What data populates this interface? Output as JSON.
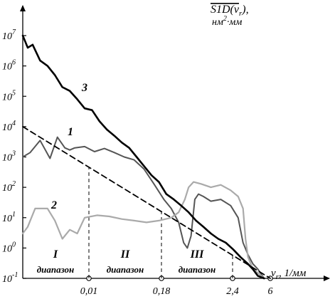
{
  "chart_data": {
    "type": "line",
    "y_axis": {
      "title": "S1D(ν",
      "title_sub": "r",
      "title_close": "),",
      "units_base": "нм",
      "units_sup": "2",
      "units_rest": "·мм",
      "scale": "log",
      "ylim": [
        0.1,
        10000000
      ],
      "tick_values": [
        0.1,
        1,
        10,
        100,
        1000,
        10000,
        100000,
        1000000,
        10000000
      ],
      "tick_bases": [
        "10",
        "10",
        "10",
        "10",
        "10",
        "10",
        "10",
        "10",
        "10"
      ],
      "tick_exps": [
        "-1",
        "0",
        "1",
        "2",
        "3",
        "4",
        "5",
        "6",
        "7"
      ]
    },
    "x_axis": {
      "label_nu": "ν",
      "label_sub": "r",
      "label_units": ", 1/мм",
      "tick_values": [
        0.01,
        0.18,
        2.4,
        6
      ],
      "tick_labels": [
        "0,01",
        "0,18",
        "2,4",
        "6"
      ]
    },
    "ranges": [
      {
        "roman": "I",
        "label": "диапазон"
      },
      {
        "roman": "II",
        "label": "диапазон"
      },
      {
        "roman": "III",
        "label": "диапазон"
      }
    ],
    "series": [
      {
        "name": "1",
        "color": "#555555",
        "x": [
          0,
          0.03,
          0.07,
          0.11,
          0.14,
          0.17,
          0.19,
          0.21,
          0.25,
          0.29,
          0.33,
          0.37,
          0.41,
          0.45,
          0.49,
          0.53,
          0.57,
          0.6,
          0.63,
          0.65,
          0.665,
          0.68,
          0.695,
          0.71,
          0.73,
          0.76,
          0.8,
          0.84,
          0.87,
          0.89,
          0.91,
          0.93,
          0.95,
          0.975
        ],
        "y": [
          1000,
          1400,
          3500,
          900,
          4500,
          2000,
          1700,
          2000,
          2200,
          1500,
          1900,
          1400,
          1000,
          800,
          400,
          130,
          40,
          20,
          7,
          1.5,
          1,
          2.5,
          40,
          60,
          50,
          35,
          40,
          25,
          10,
          1.5,
          0.6,
          0.3,
          0.2,
          0.1
        ]
      },
      {
        "name": "2",
        "color": "#aaaaaa",
        "x": [
          0,
          0.02,
          0.05,
          0.1,
          0.13,
          0.16,
          0.19,
          0.22,
          0.25,
          0.3,
          0.35,
          0.4,
          0.45,
          0.5,
          0.55,
          0.6,
          0.63,
          0.655,
          0.67,
          0.69,
          0.72,
          0.76,
          0.8,
          0.84,
          0.87,
          0.89,
          0.9,
          0.91,
          0.93,
          0.95,
          0.975
        ],
        "y": [
          3,
          5,
          20,
          20,
          8,
          2,
          4,
          3,
          10,
          12,
          11,
          9,
          8,
          7,
          8,
          10,
          15,
          40,
          100,
          150,
          130,
          100,
          120,
          80,
          50,
          20,
          2,
          0.5,
          0.2,
          0.15,
          0.1
        ]
      },
      {
        "name": "3",
        "color": "#000000",
        "x": [
          0,
          0.02,
          0.04,
          0.07,
          0.1,
          0.13,
          0.16,
          0.19,
          0.22,
          0.25,
          0.28,
          0.31,
          0.34,
          0.37,
          0.4,
          0.43,
          0.46,
          0.49,
          0.52,
          0.55,
          0.58,
          0.61,
          0.64,
          0.67,
          0.7,
          0.73,
          0.76,
          0.79,
          0.82,
          0.85,
          0.88,
          0.91,
          0.93,
          0.95,
          0.975
        ],
        "y": [
          10000000,
          4000000,
          5000000,
          1500000,
          1000000,
          500000,
          200000,
          150000,
          80000,
          40000,
          35000,
          15000,
          8000,
          5000,
          3000,
          2000,
          1000,
          500,
          250,
          150,
          60,
          40,
          25,
          15,
          8,
          5,
          3,
          2,
          1.5,
          0.9,
          0.5,
          0.3,
          0.2,
          0.12,
          0.1
        ]
      },
      {
        "name": "",
        "color": "#000000",
        "dashed": true,
        "x": [
          0,
          1
        ],
        "y": [
          10000,
          0.1
        ]
      }
    ]
  }
}
